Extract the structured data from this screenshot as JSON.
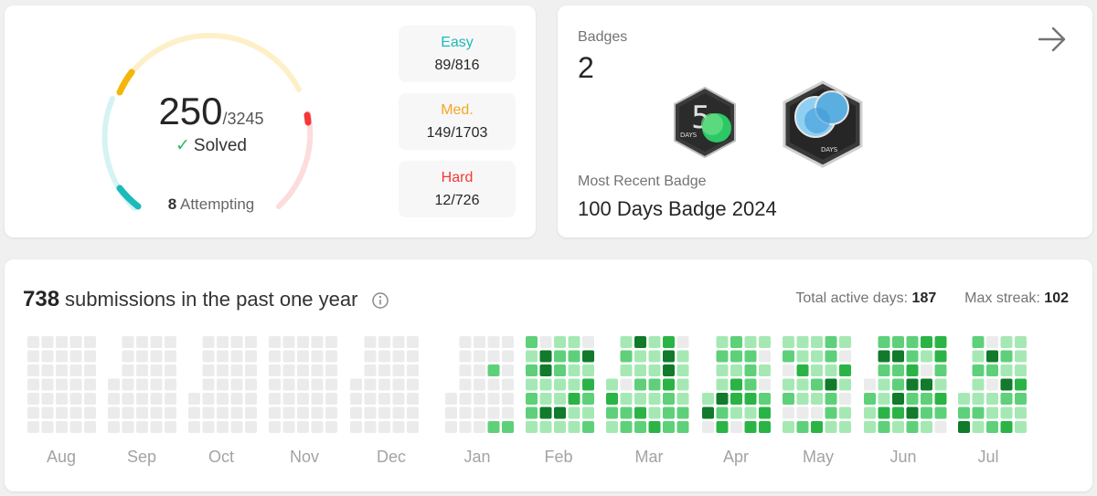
{
  "progress": {
    "solved": "250",
    "total": "/3245",
    "solved_label": "Solved",
    "attempting_count": "8",
    "attempting_label": "Attempting",
    "difficulties": [
      {
        "label": "Easy",
        "value": "89/816",
        "color": "#1cbaba"
      },
      {
        "label": "Med.",
        "value": "149/1703",
        "color": "#f5a623"
      },
      {
        "label": "Hard",
        "value": "12/726",
        "color": "#f63737"
      }
    ]
  },
  "badges": {
    "title": "Badges",
    "count": "2",
    "recent_label": "Most Recent Badge",
    "recent_name": "100 Days Badge 2024",
    "items": [
      {
        "icon": "50-days-badge-icon",
        "text": "DAYS"
      },
      {
        "icon": "100-days-badge-icon",
        "text": "DAYS"
      }
    ]
  },
  "submissions": {
    "count": "738",
    "title": "submissions in the past one year",
    "active_label": "Total active days:",
    "active_value": "187",
    "streak_label": "Max streak:",
    "streak_value": "102",
    "months": [
      "Aug",
      "Sep",
      "Oct",
      "Nov",
      "Dec",
      "Jan",
      "Feb",
      "Mar",
      "Apr",
      "May",
      "Jun",
      "Jul"
    ]
  },
  "colors": {
    "empty": "#ebebeb",
    "level1": "#a6e8b4",
    "level2": "#5fd07a",
    "level3": "#2bb446",
    "level4": "#117a2b"
  }
}
